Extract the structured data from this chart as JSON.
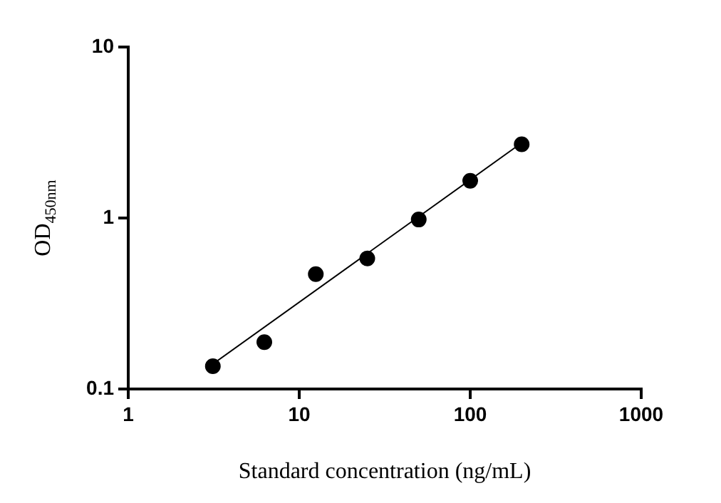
{
  "chart_data": {
    "type": "scatter",
    "xlabel": "Standard concentration (ng/mL)",
    "ylabel": "OD$_{450nm}$",
    "log": "xy",
    "grid": false,
    "legend": false,
    "xlim": [
      1,
      1000
    ],
    "xticks": [
      1,
      10,
      100,
      1000
    ],
    "ylim": [
      0.1,
      10
    ],
    "yticks": [
      0.1,
      1,
      10
    ],
    "series": [
      {
        "type": "scatter",
        "color": "#000000",
        "marker": "circle",
        "x": [
          3.125,
          6.25,
          12.5,
          25,
          50,
          100,
          200
        ],
        "values": [
          0.136,
          0.188,
          0.47,
          0.58,
          0.98,
          1.65,
          2.7
        ]
      },
      {
        "type": "line",
        "color": "#000000",
        "marker": "none",
        "line_style": "solid",
        "x": [
          3.125,
          200
        ],
        "values": [
          0.14,
          2.75
        ]
      }
    ]
  }
}
